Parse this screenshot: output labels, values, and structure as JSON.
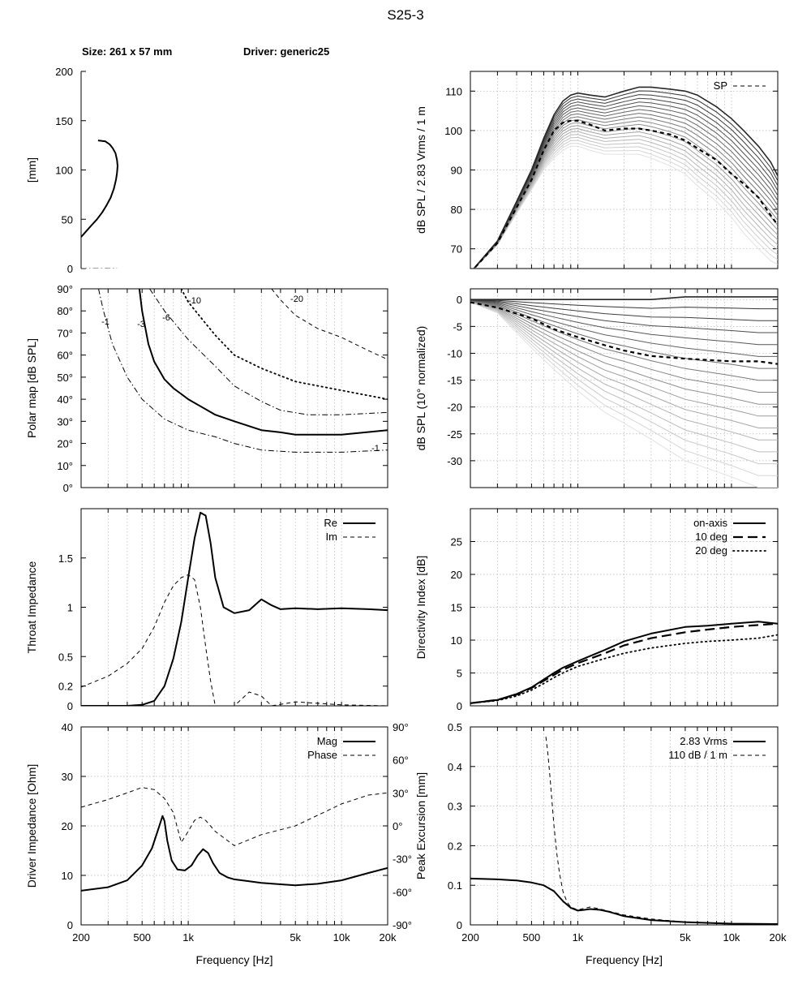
{
  "title": "S25-3",
  "header": {
    "size": "Size: 261 x 57 mm",
    "driver": "Driver: generic25"
  },
  "freq_ticks": [
    "200",
    "500",
    "1k",
    "5k",
    "10k",
    "20k"
  ],
  "freq_label": "Frequency [Hz]",
  "chart_data": [
    {
      "id": "profile",
      "type": "line",
      "ylabel": "[mm]",
      "ylim": [
        0,
        200
      ],
      "yticks": [
        "0",
        "50",
        "100",
        "150",
        "200"
      ],
      "series": [
        {
          "style": "solid",
          "points": [
            [
              0,
              32
            ],
            [
              5,
              38
            ],
            [
              10,
              44
            ],
            [
              15,
              50
            ],
            [
              20,
              57
            ],
            [
              24,
              64
            ],
            [
              28,
              72
            ],
            [
              31,
              81
            ],
            [
              33,
              90
            ],
            [
              34,
              97
            ],
            [
              34.5,
              104
            ],
            [
              34,
              110
            ],
            [
              32.5,
              117
            ],
            [
              30,
              122
            ],
            [
              27,
              126
            ],
            [
              23,
              129
            ],
            [
              16,
              130
            ]
          ]
        },
        {
          "style": "dashdot",
          "points": [
            [
              0,
              0
            ],
            [
              34,
              0
            ]
          ]
        }
      ]
    },
    {
      "id": "spl",
      "type": "line",
      "ylabel": "dB SPL / 2.83 Vrms / 1 m",
      "ylim": [
        65,
        115
      ],
      "yticks": [
        "70",
        "80",
        "90",
        "100",
        "110"
      ],
      "legend": [
        "SP"
      ],
      "x": [
        200,
        300,
        400,
        500,
        600,
        700,
        800,
        900,
        1000,
        1200,
        1500,
        2000,
        2500,
        3000,
        4000,
        5000,
        6000,
        8000,
        10000,
        12000,
        15000,
        18000,
        20000
      ],
      "series": [
        {
          "style": "top",
          "values": [
            64,
            72,
            82,
            90,
            98,
            104,
            107.5,
            109,
            109.5,
            109,
            108.5,
            110,
            111,
            111,
            110.5,
            110,
            109,
            106,
            103,
            100,
            96,
            92,
            88.5
          ]
        },
        {
          "style": "bottom",
          "values": [
            64,
            71,
            79,
            85,
            90,
            93,
            95,
            96,
            96,
            95,
            94,
            94,
            94,
            93,
            91,
            89,
            86,
            82,
            78,
            74,
            70,
            67,
            66
          ]
        },
        {
          "name": "SP",
          "style": "dashed",
          "values": [
            64,
            71.5,
            80.5,
            87.5,
            95,
            100,
            102,
            102.5,
            102.5,
            101.5,
            100,
            100.5,
            100.5,
            100,
            99,
            97.5,
            95.5,
            92.5,
            89,
            86.5,
            83,
            78.5,
            76
          ]
        }
      ]
    },
    {
      "id": "polar",
      "type": "line",
      "ylabel": "Polar map [dB SPL]",
      "ylim": [
        0,
        90
      ],
      "yticks": [
        "0°",
        "10°",
        "20°",
        "30°",
        "40°",
        "50°",
        "60°",
        "70°",
        "80°",
        "90°"
      ],
      "contour_labels": [
        "-1",
        "-3",
        "-6",
        "-10",
        "-20",
        "-1"
      ],
      "series": [
        {
          "label": "-1",
          "style": "dashdot",
          "x": [
            260,
            280,
            320,
            400,
            500,
            700,
            1000,
            1500,
            2000,
            3000,
            5000,
            10000,
            20000
          ],
          "values": [
            90,
            80,
            65,
            50,
            40,
            31,
            26,
            23,
            20,
            17,
            16,
            16,
            17
          ]
        },
        {
          "label": "-3",
          "style": "solid",
          "x": [
            480,
            500,
            550,
            600,
            700,
            800,
            1000,
            1500,
            2000,
            3000,
            4000,
            5000,
            10000,
            20000
          ],
          "values": [
            90,
            80,
            65,
            57,
            49,
            45,
            40,
            33,
            30,
            26,
            25,
            24,
            24,
            26
          ]
        },
        {
          "label": "-6",
          "style": "dashdot",
          "x": [
            560,
            700,
            1000,
            1500,
            2000,
            3000,
            4000,
            6000,
            10000,
            20000
          ],
          "values": [
            90,
            80,
            67,
            55,
            46,
            39,
            35,
            33,
            33,
            34
          ]
        },
        {
          "label": "-10",
          "style": "dotted",
          "x": [
            900,
            1000,
            1500,
            2000,
            3000,
            5000,
            10000,
            20000
          ],
          "values": [
            90,
            84,
            69,
            60,
            54,
            48,
            44,
            40
          ]
        },
        {
          "label": "-20",
          "style": "dashed",
          "x": [
            3500,
            4000,
            5000,
            7000,
            10000,
            15000,
            20000
          ],
          "values": [
            90,
            85,
            78,
            72,
            68,
            62,
            58
          ]
        }
      ]
    },
    {
      "id": "norm",
      "type": "line",
      "ylabel": "dB SPL (10° normalized)",
      "ylim": [
        -35,
        2
      ],
      "yticks": [
        "0",
        "-5",
        "-10",
        "-15",
        "-20",
        "-25",
        "-30"
      ],
      "x": [
        200,
        300,
        500,
        700,
        1000,
        1500,
        2000,
        3000,
        5000,
        10000,
        15000,
        20000
      ],
      "series": [
        {
          "style": "top",
          "values": [
            0,
            0,
            0,
            0,
            0,
            0,
            0,
            0,
            0.5,
            0.5,
            0.5,
            0.5
          ]
        },
        {
          "style": "bottom",
          "values": [
            -0.5,
            -2.5,
            -9,
            -13,
            -17,
            -21,
            -23,
            -26,
            -30,
            -33,
            -35,
            -35
          ]
        },
        {
          "style": "dashed",
          "values": [
            -0.5,
            -1.5,
            -3.5,
            -5.5,
            -7,
            -8.5,
            -9.5,
            -10.5,
            -11,
            -11.5,
            -11.5,
            -12
          ]
        }
      ]
    },
    {
      "id": "throat",
      "type": "line",
      "ylabel": "Throat Impedance",
      "ylim": [
        0,
        2
      ],
      "yticks": [
        "0",
        "0.2",
        "0.5",
        "1",
        "1.5"
      ],
      "legend": [
        "Re",
        "Im"
      ],
      "series": [
        {
          "name": "Re",
          "style": "solid",
          "x": [
            200,
            400,
            500,
            600,
            700,
            800,
            900,
            1000,
            1100,
            1200,
            1300,
            1400,
            1500,
            1700,
            2000,
            2500,
            3000,
            3500,
            4000,
            5000,
            7000,
            10000,
            15000,
            20000
          ],
          "values": [
            0,
            0,
            0.01,
            0.05,
            0.2,
            0.48,
            0.85,
            1.3,
            1.7,
            1.96,
            1.93,
            1.65,
            1.3,
            1.0,
            0.94,
            0.97,
            1.08,
            1.02,
            0.98,
            0.99,
            0.98,
            0.99,
            0.98,
            0.97
          ]
        },
        {
          "name": "Im",
          "style": "dashed",
          "x": [
            200,
            300,
            400,
            500,
            600,
            700,
            800,
            900,
            1000,
            1100,
            1200,
            1300,
            1400,
            1500,
            2000,
            2500,
            3000,
            3500,
            5000,
            10000,
            20000
          ],
          "values": [
            0.19,
            0.3,
            0.43,
            0.58,
            0.8,
            1.05,
            1.22,
            1.3,
            1.33,
            1.28,
            1.0,
            0.6,
            0.25,
            0,
            0,
            0.14,
            0.1,
            0,
            0.04,
            0.01,
            0
          ]
        }
      ]
    },
    {
      "id": "di",
      "type": "line",
      "ylabel": "Directivity Index [dB]",
      "ylim": [
        0,
        30
      ],
      "yticks": [
        "0",
        "5",
        "10",
        "15",
        "20",
        "25"
      ],
      "legend": [
        "on-axis",
        "10 deg",
        "20 deg"
      ],
      "x": [
        200,
        300,
        400,
        500,
        600,
        700,
        800,
        1000,
        1500,
        2000,
        3000,
        5000,
        7000,
        10000,
        15000,
        20000
      ],
      "series": [
        {
          "name": "on-axis",
          "style": "solid",
          "values": [
            0.4,
            0.9,
            1.8,
            2.8,
            4,
            5,
            5.8,
            6.8,
            8.5,
            9.8,
            11,
            12,
            12.2,
            12.5,
            12.8,
            12.5
          ]
        },
        {
          "name": "10 deg",
          "style": "longdash",
          "values": [
            0.4,
            0.9,
            1.7,
            2.7,
            3.8,
            4.7,
            5.5,
            6.5,
            8,
            9.2,
            10.3,
            11.2,
            11.6,
            12,
            12.3,
            12.5
          ]
        },
        {
          "name": "20 deg",
          "style": "dotted",
          "values": [
            0.4,
            0.8,
            1.5,
            2.4,
            3.4,
            4.3,
            5,
            6,
            7.2,
            8,
            8.8,
            9.5,
            9.8,
            10,
            10.3,
            10.8
          ]
        }
      ]
    },
    {
      "id": "drvz",
      "type": "line",
      "ylabel": "Driver Impedance [Ohm]",
      "ylim": [
        0,
        40
      ],
      "yticks": [
        "0",
        "10",
        "20",
        "30",
        "40"
      ],
      "y2ticks": [
        "-90°",
        "-60°",
        "-30°",
        "0°",
        "30°",
        "60°",
        "90°"
      ],
      "legend": [
        "Mag",
        "Phase"
      ],
      "series": [
        {
          "name": "Mag",
          "style": "solid",
          "x": [
            200,
            300,
            400,
            500,
            580,
            640,
            680,
            700,
            730,
            780,
            850,
            950,
            1050,
            1150,
            1250,
            1350,
            1450,
            1600,
            1800,
            2000,
            2500,
            3000,
            4000,
            5000,
            7000,
            10000,
            15000,
            20000
          ],
          "values": [
            6.9,
            7.6,
            9,
            12,
            15.5,
            19.5,
            22,
            21,
            17,
            13,
            11.2,
            11,
            12,
            14,
            15.3,
            14.5,
            12.5,
            10.5,
            9.6,
            9.2,
            8.8,
            8.5,
            8.2,
            8,
            8.3,
            9,
            10.5,
            11.5
          ]
        },
        {
          "name": "Phase",
          "style": "dashed",
          "x": [
            200,
            300,
            400,
            500,
            600,
            700,
            800,
            900,
            1000,
            1100,
            1200,
            1300,
            1500,
            2000,
            3000,
            5000,
            10000,
            15000,
            20000
          ],
          "values": [
            17,
            24,
            30,
            35,
            33,
            25,
            12,
            -15,
            -5,
            5,
            8,
            5,
            -5,
            -18,
            -8,
            0,
            20,
            28,
            30
          ]
        }
      ]
    },
    {
      "id": "exc",
      "type": "line",
      "ylabel": "Peak Excursion [mm]",
      "ylim": [
        0,
        0.5
      ],
      "yticks": [
        "0",
        "0.1",
        "0.2",
        "0.3",
        "0.4",
        "0.5"
      ],
      "legend": [
        "2.83 Vrms",
        "110 dB / 1 m"
      ],
      "series": [
        {
          "name": "2.83 Vrms",
          "style": "solid",
          "x": [
            200,
            300,
            400,
            500,
            600,
            700,
            800,
            900,
            1000,
            1100,
            1200,
            1400,
            1600,
            2000,
            3000,
            5000,
            10000,
            20000
          ],
          "values": [
            0.117,
            0.115,
            0.112,
            0.107,
            0.1,
            0.085,
            0.06,
            0.043,
            0.036,
            0.038,
            0.04,
            0.038,
            0.033,
            0.022,
            0.012,
            0.007,
            0.003,
            0.002
          ]
        },
        {
          "name": "110 dB / 1 m",
          "style": "dashed",
          "x": [
            620,
            640,
            660,
            680,
            700,
            730,
            760,
            800,
            850,
            900,
            1000,
            1200,
            1400,
            2000,
            3000,
            5000,
            10000,
            20000
          ],
          "values": [
            0.475,
            0.43,
            0.37,
            0.31,
            0.25,
            0.18,
            0.13,
            0.085,
            0.058,
            0.045,
            0.038,
            0.045,
            0.04,
            0.025,
            0.015,
            0.007,
            0.003,
            0.001
          ]
        }
      ]
    }
  ]
}
